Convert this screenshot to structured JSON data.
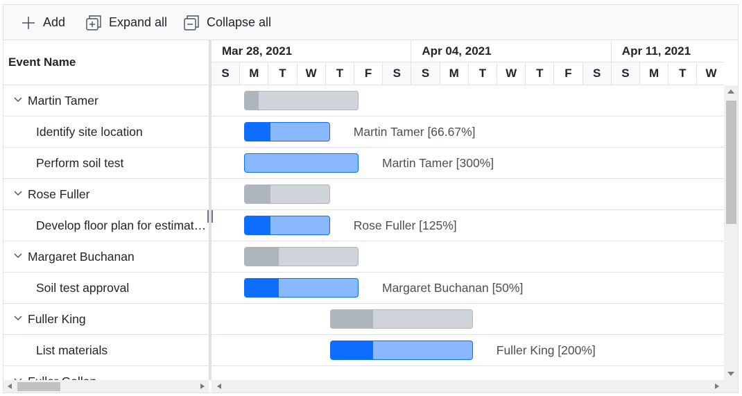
{
  "toolbar": {
    "add_label": "Add",
    "expand_label": "Expand all",
    "collapse_label": "Collapse all"
  },
  "grid": {
    "header": "Event Name",
    "rows": [
      {
        "name": "Martin Tamer",
        "parent": true
      },
      {
        "name": "Identify site location",
        "parent": false
      },
      {
        "name": "Perform soil test",
        "parent": false
      },
      {
        "name": "Rose Fuller",
        "parent": true
      },
      {
        "name": "Develop floor plan for estimation",
        "parent": false
      },
      {
        "name": "Margaret Buchanan",
        "parent": true
      },
      {
        "name": "Soil test approval",
        "parent": false
      },
      {
        "name": "Fuller King",
        "parent": true
      },
      {
        "name": "List materials",
        "parent": false
      },
      {
        "name": "Fuller Gallan",
        "parent": true
      }
    ]
  },
  "timeline": {
    "weeks": [
      "Mar 28, 2021",
      "Apr 04, 2021",
      "Apr 11, 2021"
    ],
    "days": [
      "S",
      "M",
      "T",
      "W",
      "T",
      "F",
      "S",
      "S",
      "M",
      "T",
      "W",
      "T",
      "F",
      "S",
      "S",
      "M",
      "T",
      "W"
    ],
    "weekend_indexes": [
      0,
      6,
      7,
      13,
      14
    ]
  },
  "tasks": [
    {
      "row": 0,
      "type": "parent",
      "start_day": 1,
      "duration": 4,
      "progress": 0.12
    },
    {
      "row": 1,
      "type": "child",
      "start_day": 1,
      "duration": 3,
      "progress": 0.3,
      "label": "Martin Tamer [66.67%]"
    },
    {
      "row": 2,
      "type": "child",
      "start_day": 1,
      "duration": 4,
      "progress": 0,
      "label": "Martin Tamer [300%]"
    },
    {
      "row": 3,
      "type": "parent",
      "start_day": 1,
      "duration": 3,
      "progress": 0.3
    },
    {
      "row": 4,
      "type": "child",
      "start_day": 1,
      "duration": 3,
      "progress": 0.3,
      "label": "Rose Fuller [125%]"
    },
    {
      "row": 5,
      "type": "parent",
      "start_day": 1,
      "duration": 4,
      "progress": 0.3
    },
    {
      "row": 6,
      "type": "child",
      "start_day": 1,
      "duration": 4,
      "progress": 0.3,
      "label": "Margaret Buchanan [50%]"
    },
    {
      "row": 7,
      "type": "parent",
      "start_day": 4,
      "duration": 5,
      "progress": 0.3
    },
    {
      "row": 8,
      "type": "child",
      "start_day": 4,
      "duration": 5,
      "progress": 0.3,
      "label": "Fuller King [200%]"
    }
  ],
  "colors": {
    "accent": "#0d6efd",
    "child_bar": "#8ab8fc",
    "parent_bar": "#ced4da",
    "parent_progress": "#adb5bd",
    "border": "#dee2e6"
  }
}
